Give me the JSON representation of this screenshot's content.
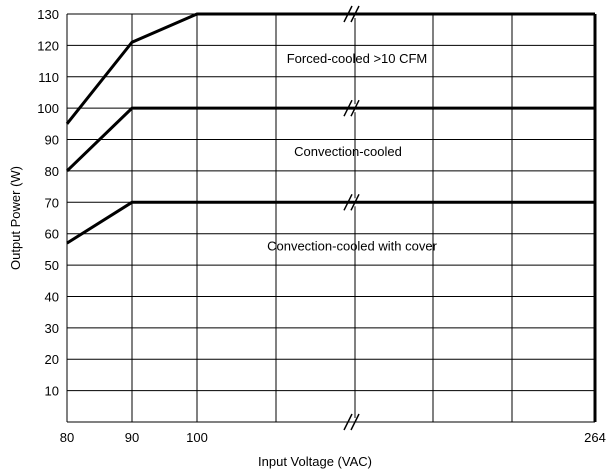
{
  "chart_data": {
    "type": "line",
    "title": "",
    "xlabel": "Input Voltage (VAC)",
    "ylabel": "Output Power (W)",
    "xlim": [
      80,
      264
    ],
    "ylim": [
      0,
      130
    ],
    "x_axis_break": true,
    "grid": true,
    "legend": "none",
    "x_tick_labels": [
      "80",
      "90",
      "100",
      "264"
    ],
    "y_tick_labels": [
      "10",
      "20",
      "30",
      "40",
      "50",
      "60",
      "70",
      "80",
      "90",
      "100",
      "110",
      "120",
      "130"
    ],
    "series": [
      {
        "name": "Forced-cooled >10 CFM",
        "x": [
          80,
          90,
          100,
          264
        ],
        "y": [
          95,
          121,
          130,
          130
        ]
      },
      {
        "name": "Convection-cooled",
        "x": [
          80,
          90,
          264
        ],
        "y": [
          80,
          100,
          100
        ]
      },
      {
        "name": "Convection-cooled with cover",
        "x": [
          80,
          90,
          264
        ],
        "y": [
          57,
          70,
          70
        ]
      }
    ],
    "line_color": "#000000",
    "grid_color": "#000000"
  }
}
